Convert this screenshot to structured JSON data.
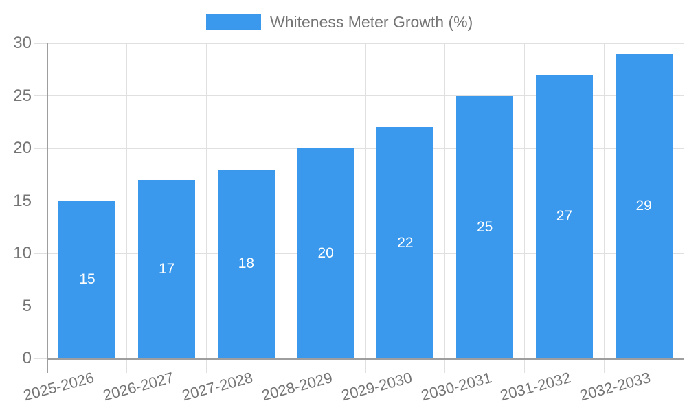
{
  "chart_data": {
    "type": "bar",
    "title": "Whiteness Meter Growth (%)",
    "categories": [
      "2025-2026",
      "2026-2027",
      "2027-2028",
      "2028-2029",
      "2029-2030",
      "2030-2031",
      "2031-2032",
      "2032-2033"
    ],
    "series": [
      {
        "name": "Whiteness Meter Growth (%)",
        "color": "#3A99EC",
        "values": [
          15,
          17,
          18,
          20,
          22,
          25,
          27,
          29
        ]
      }
    ],
    "xlabel": "",
    "ylabel": "",
    "ylim": [
      0,
      30
    ],
    "yticks": [
      0,
      5,
      10,
      15,
      20,
      25,
      30
    ],
    "grid": true,
    "legend_position": "top-center",
    "value_labels": "inside-center",
    "x_label_rotation_deg": -15
  },
  "colors": {
    "bar": "#3A99EC",
    "grid": "#E0E0E0",
    "axis": "#9E9E9E",
    "tick_label": "#757575",
    "value_label": "#FFFFFF",
    "background": "#FFFFFF"
  }
}
